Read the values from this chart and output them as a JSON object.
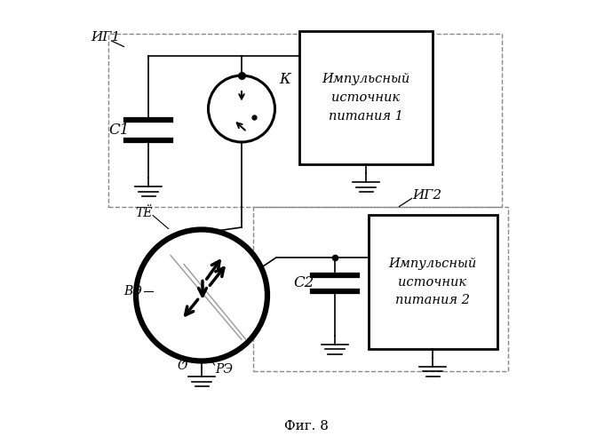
{
  "title": "Фиг. 8",
  "bg_color": "#ffffff",
  "line_color": "#000000",
  "dashed_color": "#888888",
  "box1_text": "Импульсный\nисточник\nпитания 1",
  "box2_text": "Импульсный\nисточник\nпитания 2",
  "label_IG1": "ИГ1",
  "label_IG2": "ИГ2",
  "label_C1": "С1",
  "label_C2": "С2",
  "label_K": "К",
  "label_TE": "ТЁ",
  "label_VE": "ВЭ",
  "label_O": "О",
  "label_RE": "РЭ"
}
